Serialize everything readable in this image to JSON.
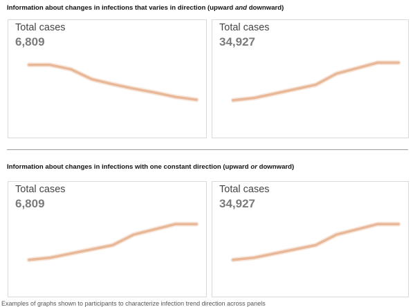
{
  "sections": [
    {
      "title_lead": "Information about changes in infections that varies in direction (upward ",
      "title_emph": "and",
      "title_tail": " downward)"
    },
    {
      "title_lead": "Information about changes in infections with one constant direction (upward ",
      "title_emph": "or",
      "title_tail": " downward)"
    }
  ],
  "caption": "Examples of graphs shown to participants to characterize infection trend direction across panels",
  "line_color": "#e8b898",
  "chart_data": [
    {
      "type": "line",
      "label": "Total cases",
      "value": "6,809",
      "x": [
        0,
        1,
        2,
        3,
        4,
        5,
        6,
        7,
        8
      ],
      "y": [
        84,
        84,
        76,
        58,
        49,
        41,
        34,
        26,
        21
      ],
      "ylim": [
        0,
        100
      ]
    },
    {
      "type": "line",
      "label": "Total cases",
      "value": "34,927",
      "x": [
        0,
        1,
        2,
        3,
        4,
        5,
        6,
        7,
        8
      ],
      "y": [
        20,
        24,
        32,
        40,
        48,
        68,
        78,
        88,
        88
      ],
      "ylim": [
        0,
        100
      ]
    },
    {
      "type": "line",
      "label": "Total cases",
      "value": "6,809",
      "x": [
        0,
        1,
        2,
        3,
        4,
        5,
        6,
        7,
        8
      ],
      "y": [
        20,
        24,
        32,
        40,
        48,
        68,
        78,
        88,
        88
      ],
      "ylim": [
        0,
        100
      ]
    },
    {
      "type": "line",
      "label": "Total cases",
      "value": "34,927",
      "x": [
        0,
        1,
        2,
        3,
        4,
        5,
        6,
        7,
        8
      ],
      "y": [
        20,
        24,
        32,
        40,
        48,
        68,
        78,
        88,
        88
      ],
      "ylim": [
        0,
        100
      ]
    }
  ]
}
